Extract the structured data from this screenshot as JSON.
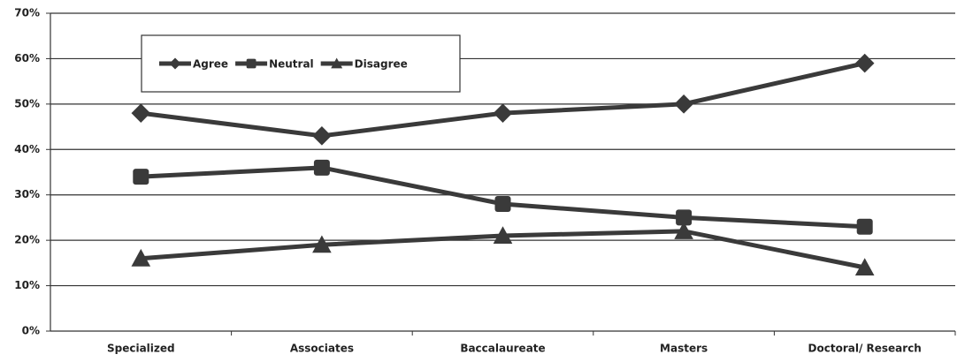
{
  "chart_data": {
    "type": "line",
    "categories": [
      "Specialized",
      "Associates",
      "Baccalaureate",
      "Masters",
      "Doctoral/ Research"
    ],
    "series": [
      {
        "name": "Agree",
        "color": "#3a3a3a",
        "marker": "diamond",
        "values": [
          48,
          43,
          48,
          50,
          59
        ]
      },
      {
        "name": "Neutral",
        "color": "#3a3a3a",
        "marker": "square",
        "values": [
          34,
          36,
          28,
          25,
          23
        ]
      },
      {
        "name": "Disagree",
        "color": "#3a3a3a",
        "marker": "triangle",
        "values": [
          16,
          19,
          21,
          22,
          14
        ]
      }
    ],
    "ylim": [
      0,
      70
    ],
    "yticks": [
      {
        "value": 0,
        "label": "0%"
      },
      {
        "value": 10,
        "label": "10%"
      },
      {
        "value": 20,
        "label": "20%"
      },
      {
        "value": 30,
        "label": "30%"
      },
      {
        "value": 40,
        "label": "40%"
      },
      {
        "value": 50,
        "label": "50%"
      },
      {
        "value": 60,
        "label": "60%"
      },
      {
        "value": 70,
        "label": "70%"
      }
    ],
    "grid": true,
    "legend": "top-left"
  }
}
